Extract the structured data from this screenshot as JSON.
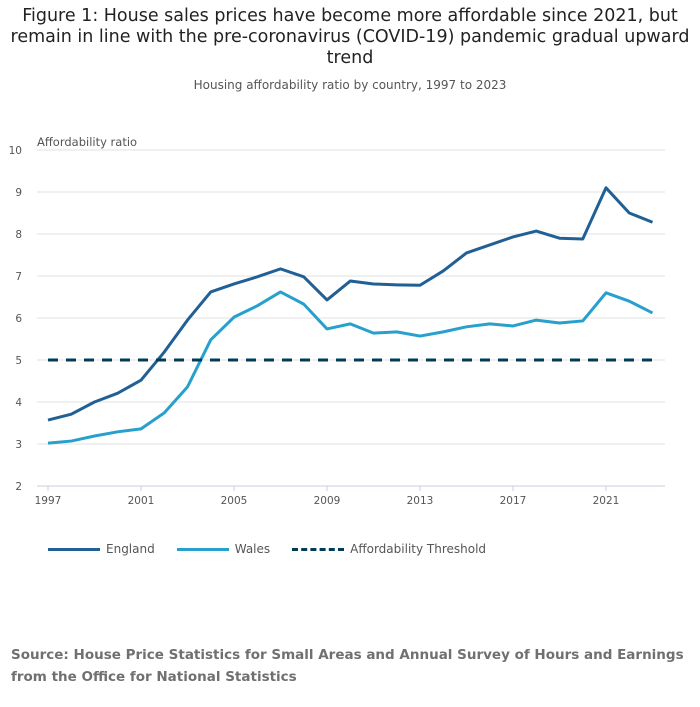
{
  "title": "Figure 1: House sales prices have become more affordable since 2021, but remain in line with the pre-coronavirus (COVID-19) pandemic gradual upward trend",
  "subtitle": "Housing affordability ratio by country, 1997 to 2023",
  "source": "Source: House Price Statistics for Small Areas and Annual Survey of Hours and Earnings from the Office for National Statistics",
  "chart_data": {
    "type": "line",
    "ylabel": "Affordability ratio",
    "xlabel": "",
    "ylim": [
      2,
      10
    ],
    "yticks": [
      2,
      3,
      4,
      5,
      6,
      7,
      8,
      9,
      10
    ],
    "xticks": [
      1997,
      2001,
      2005,
      2009,
      2013,
      2017,
      2021
    ],
    "x": [
      1997,
      1998,
      1999,
      2000,
      2001,
      2002,
      2003,
      2004,
      2005,
      2006,
      2007,
      2008,
      2009,
      2010,
      2011,
      2012,
      2013,
      2014,
      2015,
      2016,
      2017,
      2018,
      2019,
      2020,
      2021,
      2022,
      2023
    ],
    "grid": true,
    "legend_position": "bottom-left",
    "series": [
      {
        "name": "England",
        "color": "#206095",
        "dash": false,
        "values": [
          3.57,
          3.71,
          4.0,
          4.21,
          4.52,
          5.19,
          5.95,
          6.62,
          6.81,
          6.98,
          7.17,
          6.98,
          6.43,
          6.88,
          6.81,
          6.79,
          6.78,
          7.12,
          7.55,
          7.74,
          7.93,
          8.07,
          7.9,
          7.88,
          9.1,
          8.5,
          8.28
        ]
      },
      {
        "name": "Wales",
        "color": "#27a0cc",
        "dash": false,
        "values": [
          3.02,
          3.07,
          3.19,
          3.29,
          3.36,
          3.74,
          4.36,
          5.48,
          6.02,
          6.29,
          6.62,
          6.33,
          5.74,
          5.86,
          5.64,
          5.67,
          5.57,
          5.67,
          5.79,
          5.86,
          5.81,
          5.95,
          5.88,
          5.93,
          6.6,
          6.4,
          6.12
        ]
      },
      {
        "name": "Affordability Threshold",
        "color": "#003c57",
        "dash": true,
        "values": [
          5,
          5,
          5,
          5,
          5,
          5,
          5,
          5,
          5,
          5,
          5,
          5,
          5,
          5,
          5,
          5,
          5,
          5,
          5,
          5,
          5,
          5,
          5,
          5,
          5,
          5,
          5
        ]
      }
    ]
  }
}
